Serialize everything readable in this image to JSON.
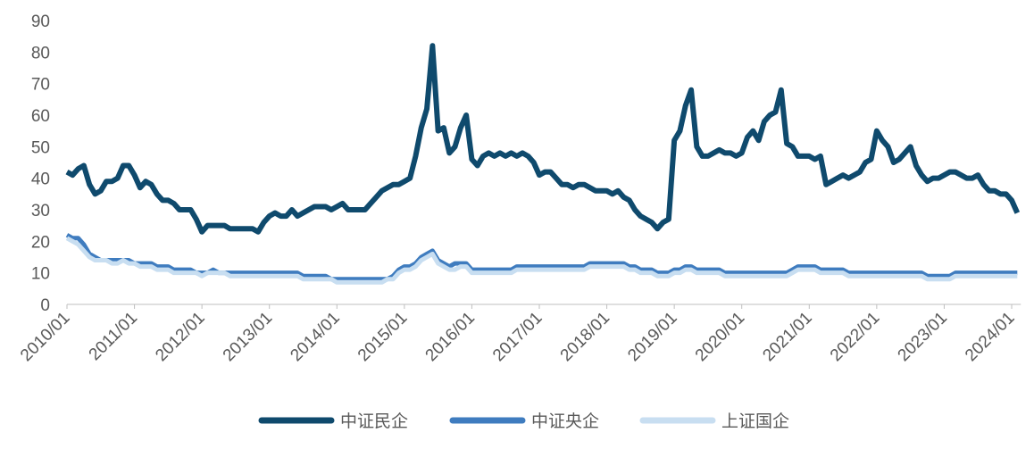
{
  "chart_data": {
    "type": "line",
    "x": [
      "2010/01",
      "2010/02",
      "2010/03",
      "2010/04",
      "2010/05",
      "2010/06",
      "2010/07",
      "2010/08",
      "2010/09",
      "2010/10",
      "2010/11",
      "2010/12",
      "2011/01",
      "2011/02",
      "2011/03",
      "2011/04",
      "2011/05",
      "2011/06",
      "2011/07",
      "2011/08",
      "2011/09",
      "2011/10",
      "2011/11",
      "2011/12",
      "2012/01",
      "2012/02",
      "2012/03",
      "2012/04",
      "2012/05",
      "2012/06",
      "2012/07",
      "2012/08",
      "2012/09",
      "2012/10",
      "2012/11",
      "2012/12",
      "2013/01",
      "2013/02",
      "2013/03",
      "2013/04",
      "2013/05",
      "2013/06",
      "2013/07",
      "2013/08",
      "2013/09",
      "2013/10",
      "2013/11",
      "2013/12",
      "2014/01",
      "2014/02",
      "2014/03",
      "2014/04",
      "2014/05",
      "2014/06",
      "2014/07",
      "2014/08",
      "2014/09",
      "2014/10",
      "2014/11",
      "2014/12",
      "2015/01",
      "2015/02",
      "2015/03",
      "2015/04",
      "2015/05",
      "2015/06",
      "2015/07",
      "2015/08",
      "2015/09",
      "2015/10",
      "2015/11",
      "2015/12",
      "2016/01",
      "2016/02",
      "2016/03",
      "2016/04",
      "2016/05",
      "2016/06",
      "2016/07",
      "2016/08",
      "2016/09",
      "2016/10",
      "2016/11",
      "2016/12",
      "2017/01",
      "2017/02",
      "2017/03",
      "2017/04",
      "2017/05",
      "2017/06",
      "2017/07",
      "2017/08",
      "2017/09",
      "2017/10",
      "2017/11",
      "2017/12",
      "2018/01",
      "2018/02",
      "2018/03",
      "2018/04",
      "2018/05",
      "2018/06",
      "2018/07",
      "2018/08",
      "2018/09",
      "2018/10",
      "2018/11",
      "2018/12",
      "2019/01",
      "2019/02",
      "2019/03",
      "2019/04",
      "2019/05",
      "2019/06",
      "2019/07",
      "2019/08",
      "2019/09",
      "2019/10",
      "2019/11",
      "2019/12",
      "2020/01",
      "2020/02",
      "2020/03",
      "2020/04",
      "2020/05",
      "2020/06",
      "2020/07",
      "2020/08",
      "2020/09",
      "2020/10",
      "2020/11",
      "2020/12",
      "2021/01",
      "2021/02",
      "2021/03",
      "2021/04",
      "2021/05",
      "2021/06",
      "2021/07",
      "2021/08",
      "2021/09",
      "2021/10",
      "2021/11",
      "2021/12",
      "2022/01",
      "2022/02",
      "2022/03",
      "2022/04",
      "2022/05",
      "2022/06",
      "2022/07",
      "2022/08",
      "2022/09",
      "2022/10",
      "2022/11",
      "2022/12",
      "2023/01",
      "2023/02",
      "2023/03",
      "2023/04",
      "2023/05",
      "2023/06",
      "2023/07",
      "2023/08",
      "2023/09",
      "2023/10",
      "2023/11",
      "2023/12",
      "2024/01",
      "2024/02"
    ],
    "series": [
      {
        "name": "中证民企",
        "color": "#0f4a6d",
        "values": [
          42,
          41,
          43,
          44,
          38,
          35,
          36,
          39,
          39,
          40,
          44,
          44,
          41,
          37,
          39,
          38,
          35,
          33,
          33,
          32,
          30,
          30,
          30,
          27,
          23,
          25,
          25,
          25,
          25,
          24,
          24,
          24,
          24,
          24,
          23,
          26,
          28,
          29,
          28,
          28,
          30,
          28,
          29,
          30,
          31,
          31,
          31,
          30,
          31,
          32,
          30,
          30,
          30,
          30,
          32,
          34,
          36,
          37,
          38,
          38,
          39,
          40,
          47,
          56,
          62,
          82,
          55,
          56,
          48,
          50,
          56,
          60,
          46,
          44,
          47,
          48,
          47,
          48,
          47,
          48,
          47,
          48,
          47,
          45,
          41,
          42,
          42,
          40,
          38,
          38,
          37,
          38,
          38,
          37,
          36,
          36,
          36,
          35,
          36,
          34,
          33,
          30,
          28,
          27,
          26,
          24,
          26,
          27,
          52,
          55,
          63,
          68,
          50,
          47,
          47,
          48,
          49,
          48,
          48,
          47,
          48,
          53,
          55,
          52,
          58,
          60,
          61,
          68,
          51,
          50,
          47,
          47,
          47,
          46,
          47,
          38,
          39,
          40,
          41,
          40,
          41,
          42,
          45,
          46,
          55,
          52,
          50,
          45,
          46,
          48,
          50,
          44,
          41,
          39,
          40,
          40,
          41,
          42,
          42,
          41,
          40,
          40,
          41,
          38,
          36,
          36,
          35,
          35,
          33,
          29
        ]
      },
      {
        "name": "中证央企",
        "color": "#3f7cbf",
        "values": [
          22,
          21,
          21,
          19,
          16,
          15,
          14,
          14,
          14,
          14,
          14,
          14,
          13,
          13,
          13,
          13,
          12,
          12,
          12,
          11,
          11,
          11,
          11,
          10,
          10,
          10,
          11,
          10,
          10,
          10,
          10,
          10,
          10,
          10,
          10,
          10,
          10,
          10,
          10,
          10,
          10,
          10,
          9,
          9,
          9,
          9,
          9,
          8,
          8,
          8,
          8,
          8,
          8,
          8,
          8,
          8,
          8,
          8,
          9,
          11,
          12,
          12,
          13,
          15,
          16,
          17,
          14,
          13,
          12,
          13,
          13,
          13,
          11,
          11,
          11,
          11,
          11,
          11,
          11,
          11,
          12,
          12,
          12,
          12,
          12,
          12,
          12,
          12,
          12,
          12,
          12,
          12,
          12,
          13,
          13,
          13,
          13,
          13,
          13,
          13,
          12,
          12,
          11,
          11,
          11,
          10,
          10,
          10,
          11,
          11,
          12,
          12,
          11,
          11,
          11,
          11,
          11,
          10,
          10,
          10,
          10,
          10,
          10,
          10,
          10,
          10,
          10,
          10,
          10,
          11,
          12,
          12,
          12,
          12,
          11,
          11,
          11,
          11,
          11,
          10,
          10,
          10,
          10,
          10,
          10,
          10,
          10,
          10,
          10,
          10,
          10,
          10,
          10,
          9,
          9,
          9,
          9,
          9,
          10,
          10,
          10,
          10,
          10,
          10,
          10,
          10,
          10,
          10,
          10,
          10
        ]
      },
      {
        "name": "上证国企",
        "color": "#c8def1",
        "values": [
          21,
          20,
          19,
          17,
          15,
          14,
          14,
          14,
          13,
          13,
          14,
          13,
          13,
          12,
          12,
          12,
          11,
          11,
          11,
          10,
          10,
          10,
          10,
          10,
          9,
          10,
          10,
          10,
          10,
          9,
          9,
          9,
          9,
          9,
          9,
          9,
          9,
          9,
          9,
          9,
          9,
          9,
          8,
          8,
          8,
          8,
          8,
          8,
          7,
          7,
          7,
          7,
          7,
          7,
          7,
          7,
          7,
          8,
          8,
          10,
          11,
          11,
          12,
          14,
          15,
          16,
          13,
          12,
          11,
          11,
          12,
          12,
          10,
          10,
          10,
          10,
          10,
          10,
          10,
          10,
          11,
          11,
          11,
          11,
          11,
          11,
          11,
          11,
          11,
          11,
          11,
          11,
          11,
          12,
          12,
          12,
          12,
          12,
          12,
          12,
          11,
          11,
          10,
          10,
          10,
          9,
          9,
          9,
          10,
          10,
          11,
          11,
          10,
          10,
          10,
          10,
          10,
          9,
          9,
          9,
          9,
          9,
          9,
          9,
          9,
          9,
          9,
          9,
          9,
          10,
          11,
          11,
          11,
          11,
          10,
          10,
          10,
          10,
          10,
          9,
          9,
          9,
          9,
          9,
          9,
          9,
          9,
          9,
          9,
          9,
          9,
          9,
          9,
          8,
          8,
          8,
          8,
          8,
          9,
          9,
          9,
          9,
          9,
          9,
          9,
          9,
          9,
          9,
          9,
          9
        ]
      }
    ],
    "ylim": [
      0,
      90
    ],
    "yticks": [
      0,
      10,
      20,
      30,
      40,
      50,
      60,
      70,
      80,
      90
    ],
    "xticks": [
      "2010/01",
      "2011/01",
      "2012/01",
      "2013/01",
      "2014/01",
      "2015/01",
      "2016/01",
      "2017/01",
      "2018/01",
      "2019/01",
      "2020/01",
      "2021/01",
      "2022/01",
      "2023/01",
      "2024/01"
    ],
    "legend": "bottom"
  }
}
